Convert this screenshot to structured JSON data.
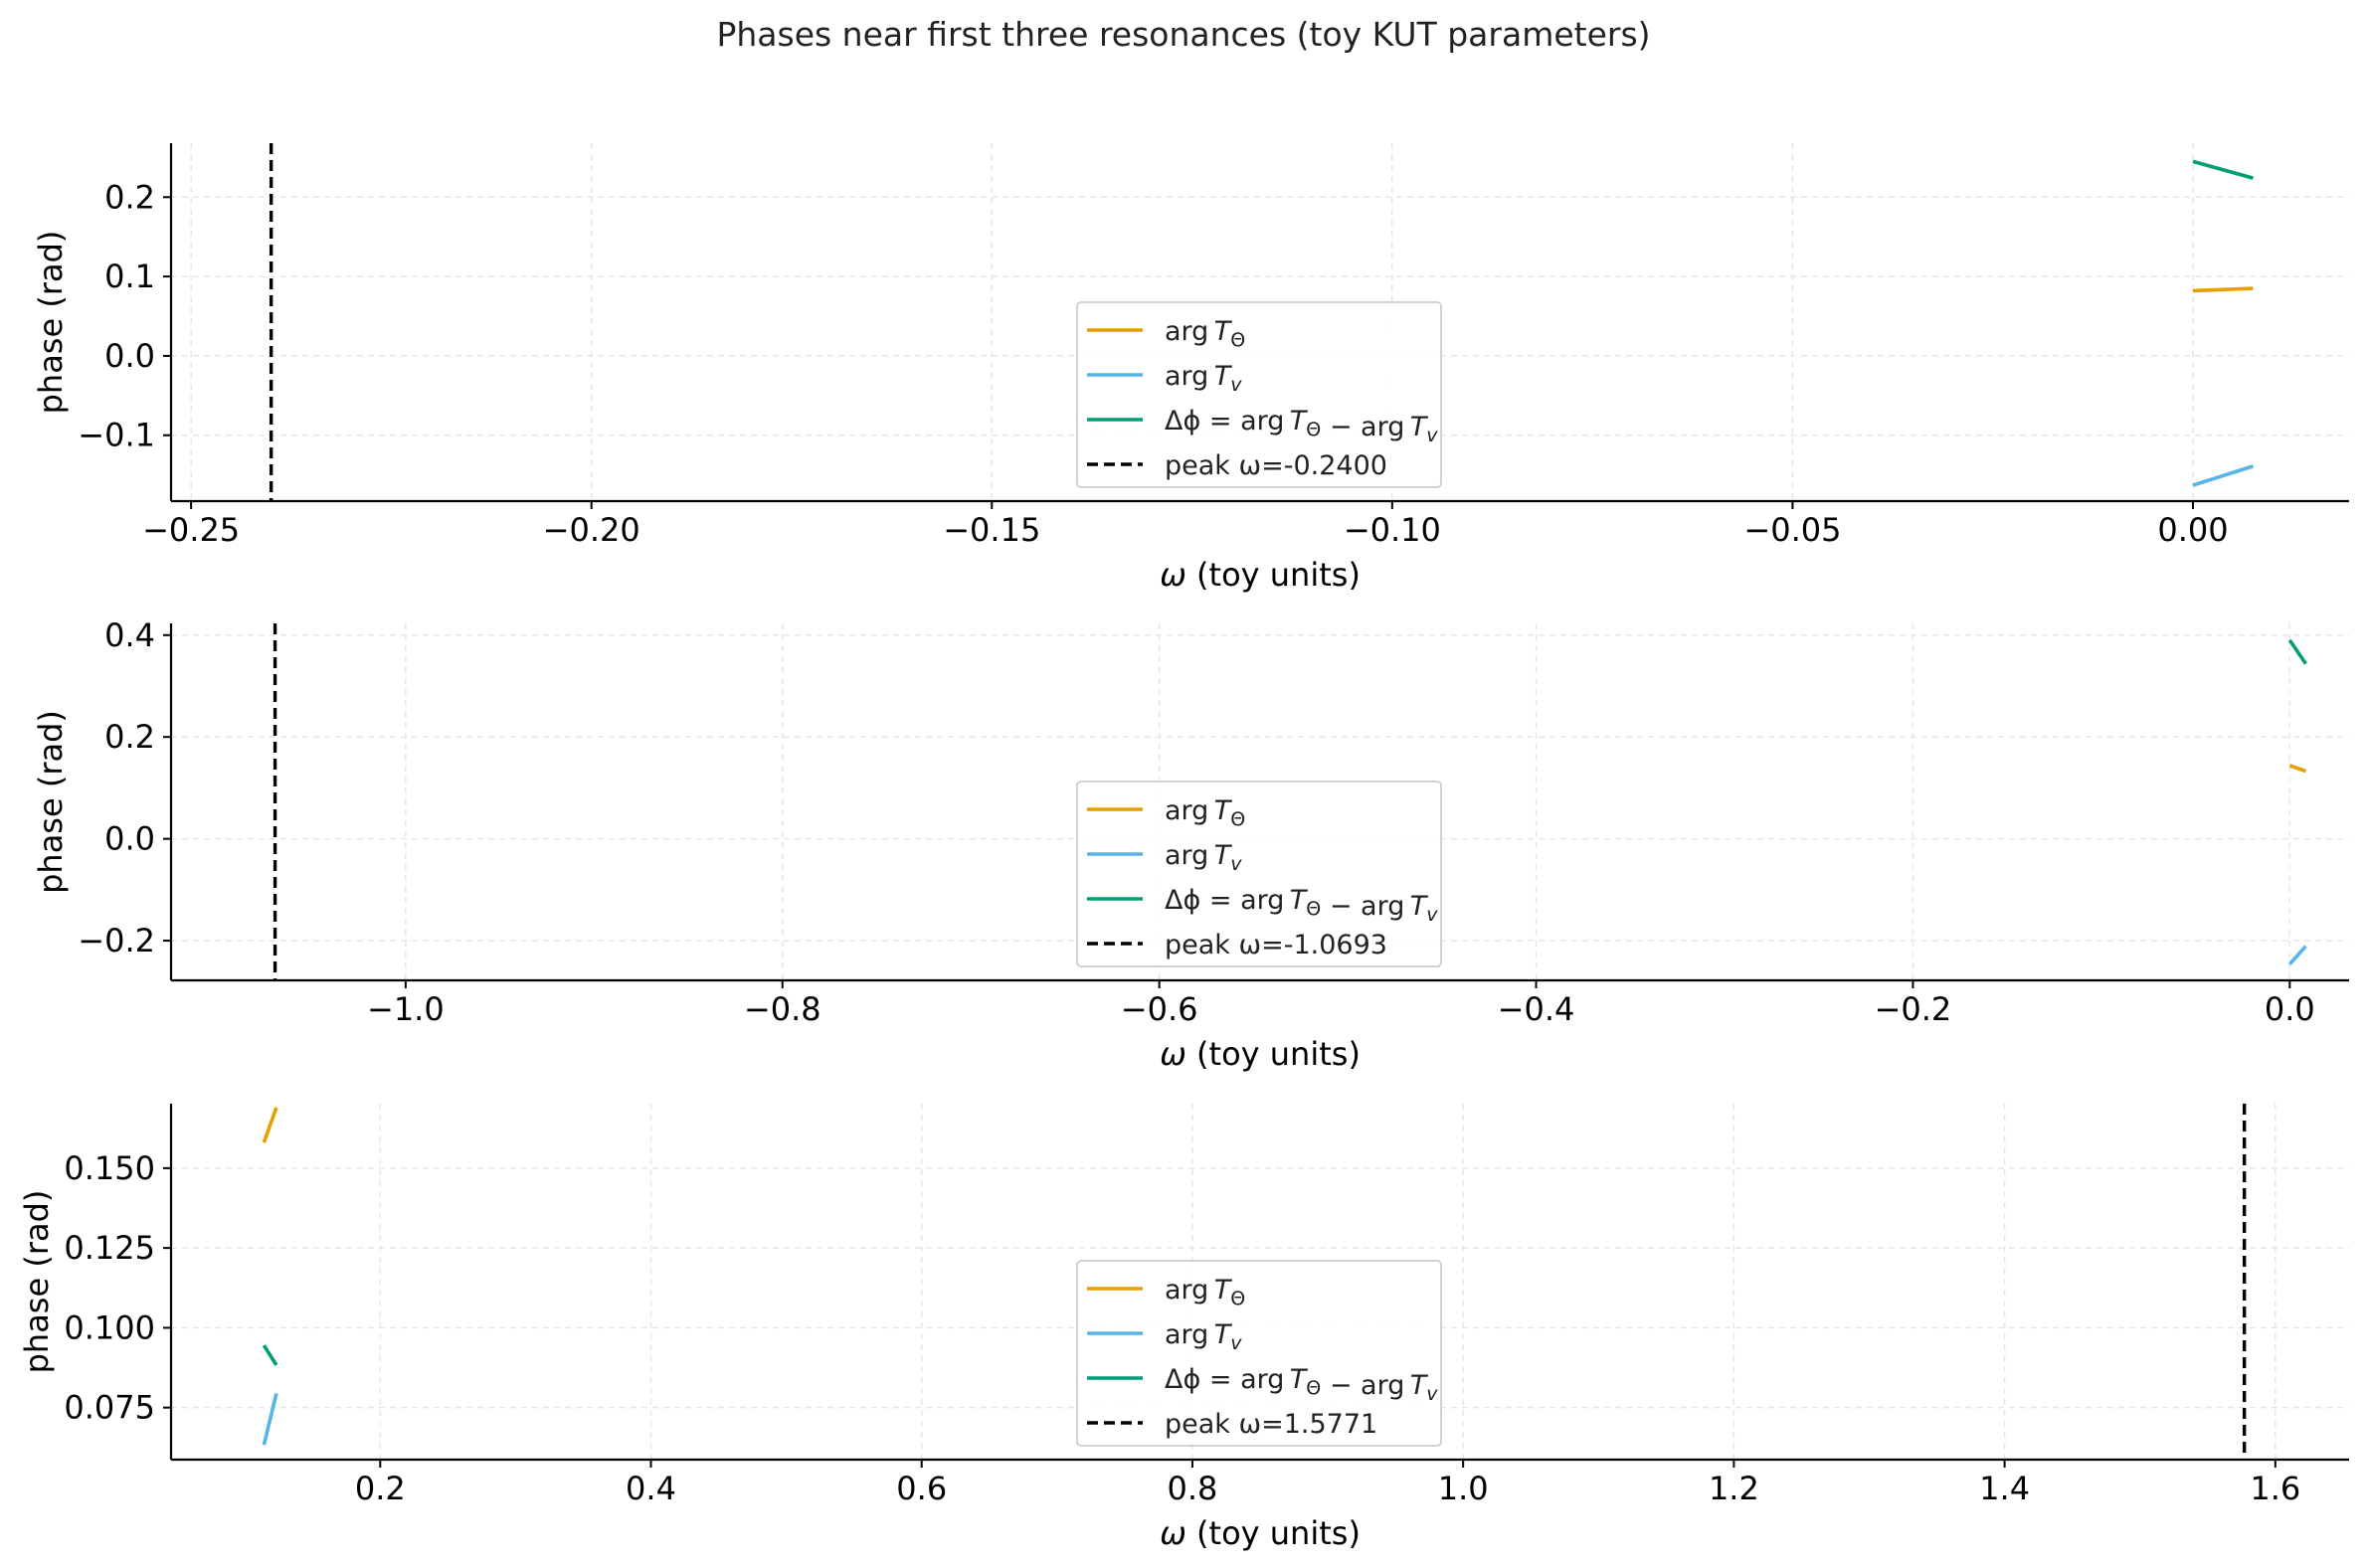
{
  "figure": {
    "title": "Phases near first three resonances (toy KUT parameters)"
  },
  "colors": {
    "argT_theta": "#E69F00",
    "argT_v": "#56B4E9",
    "delta_phi": "#009E73",
    "peak": "#000000"
  },
  "chart_data": [
    {
      "type": "line",
      "xlabel": "ω (toy units)",
      "ylabel": "phase (rad)",
      "xlim": [
        -0.2525,
        0.0195
      ],
      "ylim": [
        -0.183,
        0.268
      ],
      "xticks": [
        -0.25,
        -0.2,
        -0.15,
        -0.1,
        -0.05,
        0.0
      ],
      "xtick_labels": [
        "−0.25",
        "−0.20",
        "−0.15",
        "−0.10",
        "−0.05",
        "0.00"
      ],
      "yticks": [
        -0.1,
        0.0,
        0.1,
        0.2
      ],
      "ytick_labels": [
        "−0.1",
        "0.0",
        "0.1",
        "0.2"
      ],
      "grid": true,
      "legend_placement": "lower-center",
      "legend": {
        "argT_theta": "arg TΘ",
        "argT_v": "arg Tv",
        "delta_phi": "Δϕ = arg TΘ − arg Tv",
        "peak": "peak ω=-0.2400"
      },
      "series": [
        {
          "key": "argT_theta",
          "x": [
            0.0,
            0.0075
          ],
          "y": [
            0.082,
            0.085
          ]
        },
        {
          "key": "argT_v",
          "x": [
            0.0,
            0.0075
          ],
          "y": [
            -0.163,
            -0.139
          ]
        },
        {
          "key": "delta_phi",
          "x": [
            0.0,
            0.0075
          ],
          "y": [
            0.245,
            0.224
          ]
        }
      ],
      "peak_x": -0.24
    },
    {
      "type": "line",
      "xlabel": "ω (toy units)",
      "ylabel": "phase (rad)",
      "xlim": [
        -1.1245,
        0.0315
      ],
      "ylim": [
        -0.278,
        0.423
      ],
      "xticks": [
        -1.0,
        -0.8,
        -0.6,
        -0.4,
        -0.2,
        0.0
      ],
      "xtick_labels": [
        "−1.0",
        "−0.8",
        "−0.6",
        "−0.4",
        "−0.2",
        "0.0"
      ],
      "yticks": [
        -0.2,
        0.0,
        0.2,
        0.4
      ],
      "ytick_labels": [
        "−0.2",
        "0.0",
        "0.2",
        "0.4"
      ],
      "grid": true,
      "legend_placement": "lower-center",
      "legend": {
        "argT_theta": "arg TΘ",
        "argT_v": "arg Tv",
        "delta_phi": "Δϕ = arg TΘ − arg Tv",
        "peak": "peak ω=-1.0693"
      },
      "series": [
        {
          "key": "argT_theta",
          "x": [
            0.0,
            0.0085
          ],
          "y": [
            0.144,
            0.133
          ]
        },
        {
          "key": "argT_v",
          "x": [
            0.0,
            0.0085
          ],
          "y": [
            -0.246,
            -0.211
          ]
        },
        {
          "key": "delta_phi",
          "x": [
            0.0,
            0.0085
          ],
          "y": [
            0.39,
            0.344
          ]
        }
      ],
      "peak_x": -1.0693
    },
    {
      "type": "line",
      "xlabel": "ω (toy units)",
      "ylabel": "phase (rad)",
      "xlim": [
        0.0455,
        1.6545
      ],
      "ylim": [
        0.0587,
        0.1702
      ],
      "xticks": [
        0.2,
        0.4,
        0.6,
        0.8,
        1.0,
        1.2,
        1.4,
        1.6
      ],
      "xtick_labels": [
        "0.2",
        "0.4",
        "0.6",
        "0.8",
        "1.0",
        "1.2",
        "1.4",
        "1.6"
      ],
      "yticks": [
        0.075,
        0.1,
        0.125,
        0.15
      ],
      "ytick_labels": [
        "0.075",
        "0.100",
        "0.125",
        "0.150"
      ],
      "grid": true,
      "legend_placement": "lower-center",
      "legend": {
        "argT_theta": "arg TΘ",
        "argT_v": "arg Tv",
        "delta_phi": "Δϕ = arg TΘ − arg Tv",
        "peak": "peak ω=1.5771"
      },
      "series": [
        {
          "key": "argT_theta",
          "x": [
            0.1141,
            0.1233
          ],
          "y": [
            0.158,
            0.169
          ]
        },
        {
          "key": "argT_v",
          "x": [
            0.1141,
            0.1233
          ],
          "y": [
            0.0633,
            0.0794
          ]
        },
        {
          "key": "delta_phi",
          "x": [
            0.1141,
            0.1233
          ],
          "y": [
            0.0945,
            0.0883
          ]
        }
      ],
      "peak_x": 1.5771
    }
  ]
}
